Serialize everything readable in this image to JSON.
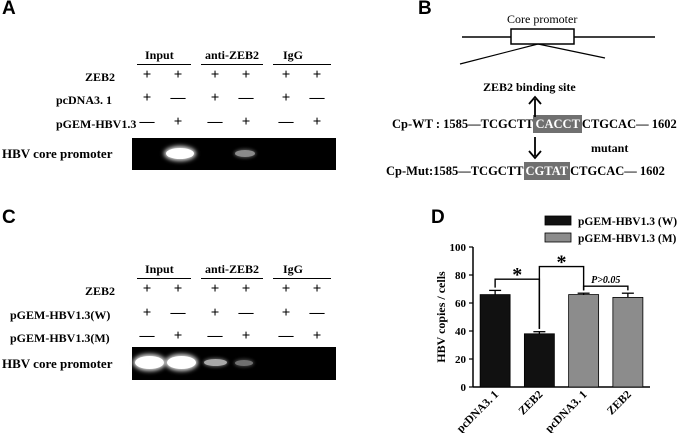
{
  "panel_a": {
    "label": "A",
    "groups": [
      "Input",
      "anti-ZEB2",
      "IgG"
    ],
    "rows": [
      {
        "label": "ZEB2",
        "values": [
          "+",
          "+",
          "+",
          "+",
          "+",
          "+"
        ]
      },
      {
        "label": "pcDNA3. 1",
        "values": [
          "+",
          "—",
          "+",
          "—",
          "+",
          "—"
        ]
      },
      {
        "label": "pGEM-HBV1.3",
        "values": [
          "—",
          "+",
          "—",
          "+",
          "—",
          "+"
        ]
      }
    ],
    "gel_label": "HBV core promoter"
  },
  "panel_b": {
    "label": "B",
    "core_promoter": "Core promoter",
    "binding_site": "ZEB2 binding site",
    "mutant": "mutant",
    "wt": {
      "prefix": "Cp-WT : 1585—TCGCTT",
      "box": "CACCT",
      "suffix": "CTGCAC— 1602"
    },
    "mut": {
      "prefix": "Cp-Mut:1585—TCGCTT",
      "box": "CGTAT",
      "suffix": "CTGCAC— 1602"
    }
  },
  "panel_c": {
    "label": "C",
    "groups": [
      "Input",
      "anti-ZEB2",
      "IgG"
    ],
    "rows": [
      {
        "label": "ZEB2",
        "values": [
          "+",
          "+",
          "+",
          "+",
          "+",
          "+"
        ]
      },
      {
        "label": "pGEM-HBV1.3(W)",
        "values": [
          "+",
          "—",
          "+",
          "—",
          "+",
          "—"
        ]
      },
      {
        "label": "pGEM-HBV1.3(M)",
        "values": [
          "—",
          "+",
          "—",
          "+",
          "—",
          "+"
        ]
      }
    ],
    "gel_label": "HBV core promoter"
  },
  "panel_d": {
    "label": "D",
    "significance": "*",
    "p_value": "P>0.05"
  },
  "chart_data": {
    "type": "bar",
    "ylabel": "HBV copies / cells",
    "ylim": [
      0,
      100
    ],
    "yticks": [
      0,
      20,
      40,
      60,
      80,
      100
    ],
    "categories": [
      "pcDNA3. 1",
      "ZEB2",
      "pcDNA3. 1",
      "ZEB2"
    ],
    "series": [
      {
        "name": "pGEM-HBV1.3 (W)",
        "color": "#111111",
        "values": [
          66,
          38,
          null,
          null
        ],
        "errors": [
          3,
          1.5,
          null,
          null
        ]
      },
      {
        "name": "pGEM-HBV1.3 (M)",
        "color": "#8c8c8c",
        "values": [
          null,
          null,
          66,
          64
        ],
        "errors": [
          null,
          null,
          1,
          3
        ]
      }
    ]
  }
}
